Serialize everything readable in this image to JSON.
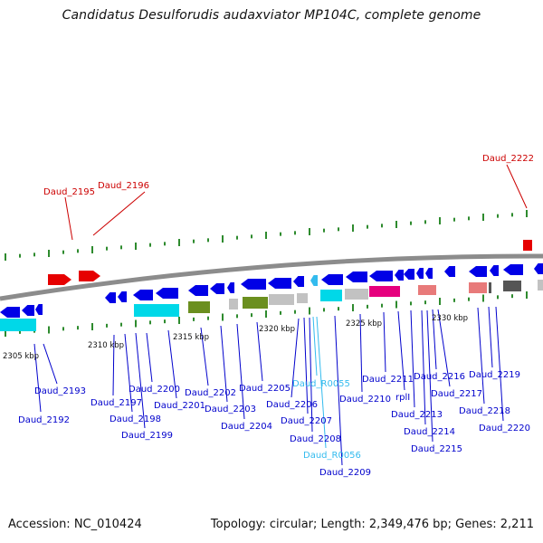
{
  "title": "Candidatus Desulforudis audaxviator MP104C, complete genome",
  "footer": {
    "accession": "Accession: NC_010424",
    "topology": "Topology: circular; Length: 2,349,476 bp; Genes: 2,211"
  },
  "colors": {
    "backbone": "#8c8c8c",
    "tick": "#2e8b2e",
    "forward_gene": "#e60000",
    "reverse_gene": "#0000e6",
    "tick_label": "#111111",
    "gene_label": "#0000cc",
    "rna_label": "#33bbee",
    "forward_label": "#cc0000",
    "cds_cyan": "#00d8e8",
    "cds_olive": "#6b8f1f",
    "cds_grey": "#c2c2c2",
    "cds_magenta": "#e6007e",
    "cds_salmon": "#e87a7a",
    "cds_dark": "#555555"
  },
  "scale_labels": [
    "2305 kbp",
    "2310 kbp",
    "2315 kbp",
    "2320 kbp",
    "2325 kbp",
    "2330 kbp"
  ],
  "forward_labels": [
    "Daud_2195",
    "Daud_2196",
    "Daud_2222"
  ],
  "gene_labels": [
    "Daud_2193",
    "Daud_2192",
    "Daud_2197",
    "Daud_2198",
    "Daud_2199",
    "Daud_2200",
    "Daud_2201",
    "Daud_2202",
    "Daud_2203",
    "Daud_2204",
    "Daud_2205",
    "Daud_2206",
    "Daud_2207",
    "Daud_2208",
    "Daud_R0055",
    "Daud_R0056",
    "Daud_2209",
    "Daud_2210",
    "Daud_2211",
    "rplI",
    "Daud_2213",
    "Daud_2214",
    "Daud_2215",
    "Daud_2216",
    "Daud_2217",
    "Daud_2218",
    "Daud_2219",
    "Daud_2220"
  ]
}
